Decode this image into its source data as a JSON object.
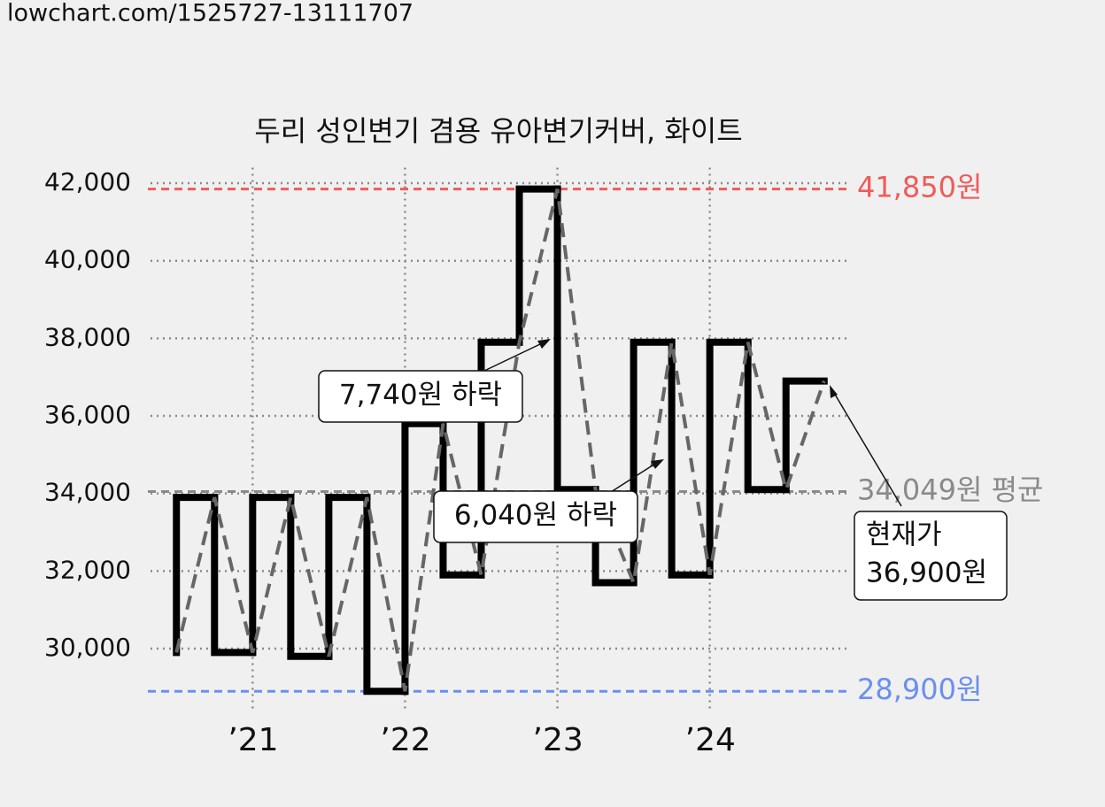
{
  "header": "lowchart.com/1525727-13111707",
  "chart_data": {
    "type": "step",
    "title": "두리 성인변기 겸용 유아변기커버, 화이트",
    "x": [
      2020.5,
      2020.75,
      2021,
      2021.25,
      2021.5,
      2021.75,
      2022,
      2022.25,
      2022.5,
      2022.75,
      2023,
      2023.25,
      2023.5,
      2023.75,
      2024,
      2024.25,
      2024.5,
      2024.75
    ],
    "series": [
      {
        "color": "#000000",
        "trend_color": "#666666",
        "values": [
          29900,
          33900,
          29900,
          33900,
          29800,
          33900,
          28900,
          35800,
          31900,
          37900,
          41850,
          34100,
          31700,
          37900,
          31900,
          37900,
          34100,
          36900
        ]
      }
    ],
    "xlim": [
      2020.33,
      2024.92
    ],
    "ylim": [
      28500,
      42400
    ],
    "xticks": [
      {
        "value": 2021,
        "label": "’21"
      },
      {
        "value": 2022,
        "label": "’22"
      },
      {
        "value": 2023,
        "label": "’23"
      },
      {
        "value": 2024,
        "label": "’24"
      }
    ],
    "yticks": [
      {
        "value": 30000,
        "label": "30,000"
      },
      {
        "value": 32000,
        "label": "32,000"
      },
      {
        "value": 34000,
        "label": "34,000"
      },
      {
        "value": 36000,
        "label": "36,000"
      },
      {
        "value": 38000,
        "label": "38,000"
      },
      {
        "value": 40000,
        "label": "40,000"
      },
      {
        "value": 42000,
        "label": "42,000"
      }
    ],
    "grid": true,
    "reference_lines": [
      {
        "value": 41850,
        "label": "41,850원",
        "color": "#f05a5a"
      },
      {
        "value": 34049,
        "label": "34,049원 평균",
        "color": "#8a8a8a"
      },
      {
        "value": 28900,
        "label": "28,900원",
        "color": "#6b8ff0"
      }
    ],
    "annotations": [
      {
        "lines": [
          "7,740원 하락"
        ]
      },
      {
        "lines": [
          "6,040원 하락"
        ]
      },
      {
        "lines": [
          "현재가",
          "36,900원"
        ]
      }
    ]
  }
}
